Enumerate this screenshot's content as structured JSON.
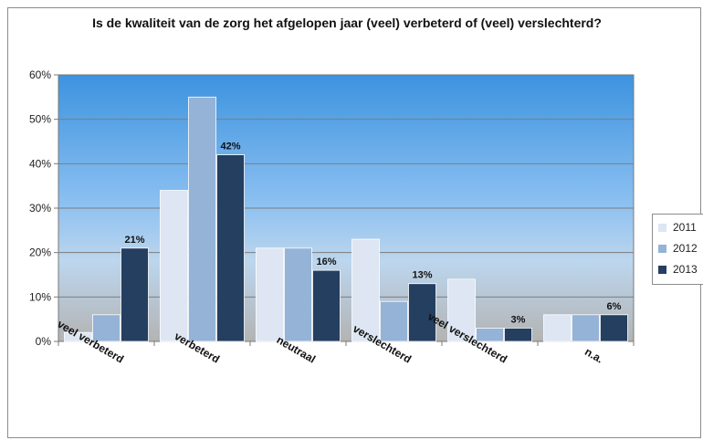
{
  "chart_data": {
    "type": "bar",
    "title": "Is de kwaliteit van de zorg het afgelopen jaar (veel) verbeterd of (veel) verslechterd?",
    "categories": [
      "veel verbeterd",
      "verbeterd",
      "neutraal",
      "verslechterd",
      "veel verslechterd",
      "n.a."
    ],
    "series": [
      {
        "name": "2011",
        "values": [
          2,
          34,
          21,
          23,
          14,
          6
        ],
        "color": "#dde6f2"
      },
      {
        "name": "2012",
        "values": [
          6,
          55,
          21,
          9,
          3,
          6
        ],
        "color": "#95b3d7"
      },
      {
        "name": "2013",
        "values": [
          21,
          42,
          16,
          13,
          3,
          6
        ],
        "color": "#243f60"
      }
    ],
    "data_labels": {
      "series": "2013",
      "labels": [
        "21%",
        "42%",
        "16%",
        "13%",
        "3%",
        "6%"
      ]
    },
    "ylim": [
      0,
      60
    ],
    "yticks": [
      "0%",
      "10%",
      "20%",
      "30%",
      "40%",
      "50%",
      "60%"
    ],
    "ytick_values": [
      0,
      10,
      20,
      30,
      40,
      50,
      60
    ],
    "grid": true,
    "legend_position": "right",
    "plot_background": "gradient sky blue to grey"
  }
}
